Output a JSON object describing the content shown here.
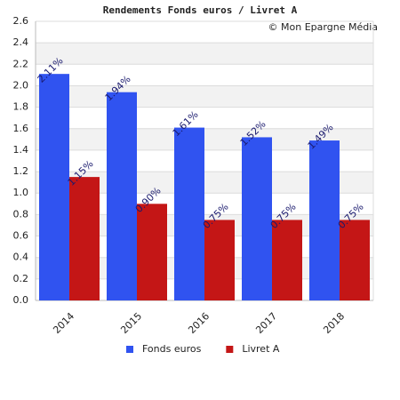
{
  "chart_data": {
    "type": "bar",
    "title": "Rendements Fonds euros / Livret A",
    "subtitle": "© Mon Epargne Média",
    "categories": [
      "2014",
      "2015",
      "2016",
      "2017",
      "2018"
    ],
    "series": [
      {
        "name": "Fonds euros",
        "color": "#3053f0",
        "values": [
          2.11,
          1.94,
          1.61,
          1.52,
          1.49
        ],
        "value_labels": [
          "2.11%",
          "1.94%",
          "1.61%",
          "1.52%",
          "1.49%"
        ]
      },
      {
        "name": "Livret A",
        "color": "#c41616",
        "values": [
          1.15,
          0.9,
          0.75,
          0.75,
          0.75
        ],
        "value_labels": [
          "1.15%",
          "0.90%",
          "0.75%",
          "0.75%",
          "0.75%"
        ]
      }
    ],
    "ylim": [
      0,
      2.6
    ],
    "yticks": [
      {
        "value": 0,
        "label": "0.0"
      },
      0.2,
      0.4,
      0.6,
      0.8,
      {
        "value": 1,
        "label": "1.0"
      },
      1.2,
      1.4,
      1.6,
      1.8,
      {
        "value": 2,
        "label": "2.0"
      },
      2.2,
      2.4,
      2.6
    ],
    "grid": true,
    "legend": "bottom"
  }
}
